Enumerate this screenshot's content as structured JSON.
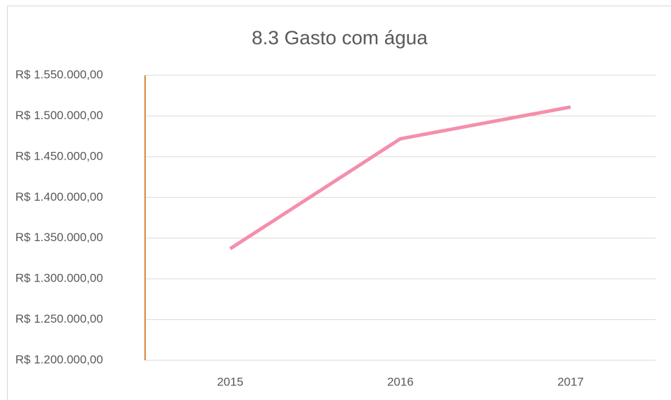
{
  "chart_data": {
    "type": "line",
    "title": "8.3 Gasto com água",
    "categories": [
      "2015",
      "2016",
      "2017"
    ],
    "values": [
      1337000,
      1472000,
      1511000
    ],
    "color": "#f48fab",
    "ylim": [
      1200000,
      1550000
    ],
    "yticks": [
      {
        "value": 1200000,
        "label": "R$ 1.200.000,00"
      },
      {
        "value": 1250000,
        "label": "R$ 1.250.000,00"
      },
      {
        "value": 1300000,
        "label": "R$ 1.300.000,00"
      },
      {
        "value": 1350000,
        "label": "R$ 1.350.000,00"
      },
      {
        "value": 1400000,
        "label": "R$ 1.400.000,00"
      },
      {
        "value": 1450000,
        "label": "R$ 1.450.000,00"
      },
      {
        "value": 1500000,
        "label": "R$ 1.500.000,00"
      },
      {
        "value": 1550000,
        "label": "R$ 1.550.000,00"
      }
    ],
    "grid": true
  }
}
